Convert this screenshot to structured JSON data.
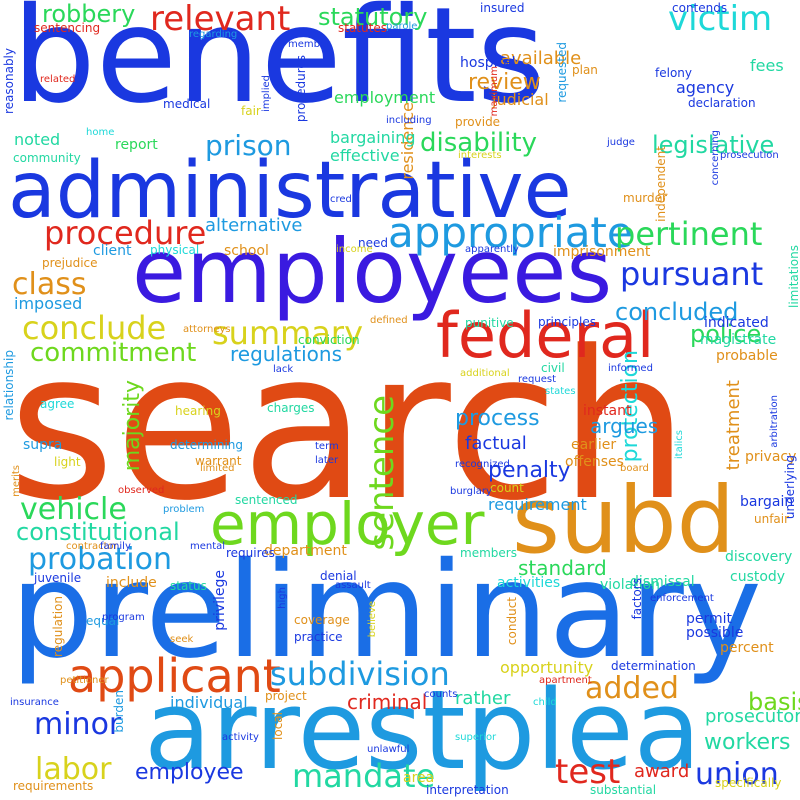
{
  "colors": {
    "background": "#ffffff",
    "palette": {
      "red": "#e0281e",
      "orange": "#e04a14",
      "amber": "#e0901a",
      "yellow": "#d8d21c",
      "lime": "#6ed81e",
      "green": "#2ad85a",
      "mint": "#22d8a2",
      "cyan": "#1ed8d8",
      "sky": "#1e9ae0",
      "blue": "#1a6ee6",
      "royal": "#1a38e0",
      "indigo": "#3a1ae0"
    }
  },
  "words": [
    {
      "text": "benefits",
      "color": "royal"
    },
    {
      "text": "search",
      "color": "orange"
    },
    {
      "text": "preliminary",
      "color": "blue"
    },
    {
      "text": "administrative",
      "color": "royal"
    },
    {
      "text": "employees",
      "color": "indigo"
    },
    {
      "text": "arrestplea",
      "color": "sky"
    },
    {
      "text": "subd",
      "color": "amber"
    },
    {
      "text": "federal",
      "color": "red"
    },
    {
      "text": "employer",
      "color": "lime"
    },
    {
      "text": "applicant",
      "color": "orange"
    },
    {
      "text": "appropriate",
      "color": "sky"
    },
    {
      "text": "relevant",
      "color": "red"
    },
    {
      "text": "victim",
      "color": "cyan"
    },
    {
      "text": "sentence",
      "color": "lime"
    },
    {
      "text": "procedure",
      "color": "red"
    },
    {
      "text": "pertinent",
      "color": "green"
    },
    {
      "text": "conclude",
      "color": "yellow"
    },
    {
      "text": "pursuant",
      "color": "royal"
    },
    {
      "text": "summary",
      "color": "yellow"
    },
    {
      "text": "commitment",
      "color": "lime"
    },
    {
      "text": "vehicle",
      "color": "green"
    },
    {
      "text": "probation",
      "color": "sky"
    },
    {
      "text": "subdivision",
      "color": "sky"
    },
    {
      "text": "labor",
      "color": "yellow"
    },
    {
      "text": "minor",
      "color": "royal"
    },
    {
      "text": "added",
      "color": "amber"
    },
    {
      "text": "mandate",
      "color": "mint"
    },
    {
      "text": "employee",
      "color": "royal"
    },
    {
      "text": "test",
      "color": "red"
    },
    {
      "text": "union",
      "color": "royal"
    },
    {
      "text": "robbery",
      "color": "green"
    },
    {
      "text": "statutory",
      "color": "green"
    },
    {
      "text": "disability",
      "color": "green"
    },
    {
      "text": "legislative",
      "color": "mint"
    },
    {
      "text": "prison",
      "color": "sky"
    },
    {
      "text": "class",
      "color": "amber"
    },
    {
      "text": "police",
      "color": "green"
    },
    {
      "text": "regulations",
      "color": "sky"
    },
    {
      "text": "concluded",
      "color": "sky"
    },
    {
      "text": "protection",
      "color": "cyan"
    },
    {
      "text": "constitutional",
      "color": "mint"
    },
    {
      "text": "penalty",
      "color": "royal"
    },
    {
      "text": "process",
      "color": "sky"
    },
    {
      "text": "standard",
      "color": "green"
    },
    {
      "text": "criminal",
      "color": "red"
    },
    {
      "text": "basis",
      "color": "lime"
    },
    {
      "text": "workers",
      "color": "mint"
    },
    {
      "text": "majority",
      "color": "lime"
    },
    {
      "text": "review",
      "color": "amber"
    },
    {
      "text": "available",
      "color": "amber"
    },
    {
      "text": "alternative",
      "color": "sky"
    },
    {
      "text": "residence",
      "color": "amber"
    },
    {
      "text": "treatment",
      "color": "amber"
    },
    {
      "text": "factual",
      "color": "royal"
    },
    {
      "text": "argues",
      "color": "sky"
    },
    {
      "text": "requirement",
      "color": "sky"
    },
    {
      "text": "opportunity",
      "color": "yellow"
    },
    {
      "text": "rather",
      "color": "mint"
    },
    {
      "text": "individual",
      "color": "sky"
    },
    {
      "text": "prosecutor",
      "color": "mint"
    },
    {
      "text": "award",
      "color": "red"
    },
    {
      "text": "agency",
      "color": "royal"
    },
    {
      "text": "imposed",
      "color": "sky"
    },
    {
      "text": "employment",
      "color": "green"
    },
    {
      "text": "bargaining",
      "color": "mint"
    },
    {
      "text": "effective",
      "color": "mint"
    },
    {
      "text": "report",
      "color": "green"
    },
    {
      "text": "noted",
      "color": "mint"
    },
    {
      "text": "hospital",
      "color": "royal"
    },
    {
      "text": "judicial",
      "color": "amber"
    },
    {
      "text": "fees",
      "color": "mint"
    },
    {
      "text": "school",
      "color": "amber"
    },
    {
      "text": "client",
      "color": "sky"
    },
    {
      "text": "physical",
      "color": "cyan"
    },
    {
      "text": "indicated",
      "color": "royal"
    },
    {
      "text": "magistrate",
      "color": "mint"
    },
    {
      "text": "probable",
      "color": "amber"
    },
    {
      "text": "privacy",
      "color": "amber"
    },
    {
      "text": "bargain",
      "color": "royal"
    },
    {
      "text": "discovery",
      "color": "mint"
    },
    {
      "text": "custody",
      "color": "mint"
    },
    {
      "text": "dismissal",
      "color": "mint"
    },
    {
      "text": "activities",
      "color": "cyan"
    },
    {
      "text": "violation",
      "color": "mint"
    },
    {
      "text": "include",
      "color": "amber"
    },
    {
      "text": "supra",
      "color": "sky"
    },
    {
      "text": "charges",
      "color": "mint"
    },
    {
      "text": "warrant",
      "color": "amber"
    },
    {
      "text": "instant",
      "color": "red"
    },
    {
      "text": "offenses",
      "color": "amber"
    },
    {
      "text": "earlier",
      "color": "amber"
    },
    {
      "text": "community",
      "color": "mint"
    },
    {
      "text": "prejudice",
      "color": "amber"
    },
    {
      "text": "medical",
      "color": "royal"
    },
    {
      "text": "agree",
      "color": "cyan"
    },
    {
      "text": "hearing",
      "color": "yellow"
    },
    {
      "text": "determining",
      "color": "sky"
    },
    {
      "text": "light",
      "color": "yellow"
    },
    {
      "text": "sentenced",
      "color": "mint"
    },
    {
      "text": "problem",
      "color": "sky"
    },
    {
      "text": "department",
      "color": "amber"
    },
    {
      "text": "members",
      "color": "mint"
    },
    {
      "text": "requires",
      "color": "royal"
    },
    {
      "text": "denial",
      "color": "royal"
    },
    {
      "text": "status",
      "color": "mint"
    },
    {
      "text": "juvenile",
      "color": "royal"
    },
    {
      "text": "equal",
      "color": "sky"
    },
    {
      "text": "practice",
      "color": "royal"
    },
    {
      "text": "coverage",
      "color": "amber"
    },
    {
      "text": "project",
      "color": "amber"
    },
    {
      "text": "permit",
      "color": "royal"
    },
    {
      "text": "possible",
      "color": "royal"
    },
    {
      "text": "percent",
      "color": "amber"
    },
    {
      "text": "determination",
      "color": "royal"
    },
    {
      "text": "factors",
      "color": "royal"
    },
    {
      "text": "unfair",
      "color": "amber"
    },
    {
      "text": "area",
      "color": "yellow"
    },
    {
      "text": "interpretation",
      "color": "royal"
    },
    {
      "text": "substantial",
      "color": "mint"
    },
    {
      "text": "requirements",
      "color": "amber"
    },
    {
      "text": "specifically",
      "color": "yellow"
    },
    {
      "text": "home",
      "color": "cyan"
    },
    {
      "text": "fair",
      "color": "yellow"
    },
    {
      "text": "need",
      "color": "royal"
    },
    {
      "text": "income",
      "color": "yellow"
    },
    {
      "text": "conviction",
      "color": "green"
    },
    {
      "text": "lack",
      "color": "royal"
    },
    {
      "text": "punitive",
      "color": "mint"
    },
    {
      "text": "principles",
      "color": "royal"
    },
    {
      "text": "civil",
      "color": "mint"
    },
    {
      "text": "request",
      "color": "royal"
    },
    {
      "text": "informed",
      "color": "royal"
    },
    {
      "text": "additional",
      "color": "yellow"
    },
    {
      "text": "count",
      "color": "yellow"
    },
    {
      "text": "recognized",
      "color": "royal"
    },
    {
      "text": "burglary",
      "color": "royal"
    },
    {
      "text": "insured",
      "color": "royal"
    },
    {
      "text": "contends",
      "color": "royal"
    },
    {
      "text": "sentencing",
      "color": "red"
    },
    {
      "text": "regarding",
      "color": "sky"
    },
    {
      "text": "member",
      "color": "royal"
    },
    {
      "text": "statutes",
      "color": "red"
    },
    {
      "text": "parole",
      "color": "sky"
    },
    {
      "text": "related",
      "color": "red"
    },
    {
      "text": "maximum",
      "color": "red"
    },
    {
      "text": "plan",
      "color": "amber"
    },
    {
      "text": "felony",
      "color": "royal"
    },
    {
      "text": "declaration",
      "color": "royal"
    },
    {
      "text": "provide",
      "color": "amber"
    },
    {
      "text": "including",
      "color": "royal"
    },
    {
      "text": "judge",
      "color": "royal"
    },
    {
      "text": "interests",
      "color": "yellow"
    },
    {
      "text": "prosecution",
      "color": "royal"
    },
    {
      "text": "murder",
      "color": "amber"
    },
    {
      "text": "credit",
      "color": "royal"
    },
    {
      "text": "apparently",
      "color": "royal"
    },
    {
      "text": "imprisonment",
      "color": "amber"
    },
    {
      "text": "attorneys",
      "color": "amber"
    },
    {
      "text": "defined",
      "color": "amber"
    },
    {
      "text": "states",
      "color": "cyan"
    },
    {
      "text": "term",
      "color": "royal"
    },
    {
      "text": "later",
      "color": "royal"
    },
    {
      "text": "board",
      "color": "amber"
    },
    {
      "text": "limited",
      "color": "amber"
    },
    {
      "text": "observed",
      "color": "red"
    },
    {
      "text": "contractor",
      "color": "amber"
    },
    {
      "text": "family",
      "color": "royal"
    },
    {
      "text": "mental",
      "color": "royal"
    },
    {
      "text": "assault",
      "color": "royal"
    },
    {
      "text": "enforcement",
      "color": "royal"
    },
    {
      "text": "insurance",
      "color": "royal"
    },
    {
      "text": "seek",
      "color": "amber"
    },
    {
      "text": "petitioner",
      "color": "amber"
    },
    {
      "text": "counts",
      "color": "royal"
    },
    {
      "text": "apartment",
      "color": "red"
    },
    {
      "text": "child",
      "color": "cyan"
    },
    {
      "text": "activity",
      "color": "royal"
    },
    {
      "text": "superior",
      "color": "cyan"
    },
    {
      "text": "unlawful",
      "color": "royal"
    },
    {
      "text": "program",
      "color": "royal"
    },
    {
      "text": "reasonably",
      "color": "royal"
    },
    {
      "text": "implied",
      "color": "royal"
    },
    {
      "text": "procedures",
      "color": "royal"
    },
    {
      "text": "requested",
      "color": "sky"
    },
    {
      "text": "concerning",
      "color": "royal"
    },
    {
      "text": "independent",
      "color": "amber"
    },
    {
      "text": "limitations",
      "color": "mint"
    },
    {
      "text": "relationship",
      "color": "sky"
    },
    {
      "text": "merits",
      "color": "amber"
    },
    {
      "text": "arbitration",
      "color": "royal"
    },
    {
      "text": "underlying",
      "color": "royal"
    },
    {
      "text": "italics",
      "color": "cyan"
    },
    {
      "text": "privilege",
      "color": "royal"
    },
    {
      "text": "regulation",
      "color": "amber"
    },
    {
      "text": "high",
      "color": "royal"
    },
    {
      "text": "believe",
      "color": "yellow"
    },
    {
      "text": "conduct",
      "color": "amber"
    },
    {
      "text": "burden",
      "color": "sky"
    },
    {
      "text": "local",
      "color": "amber"
    }
  ]
}
